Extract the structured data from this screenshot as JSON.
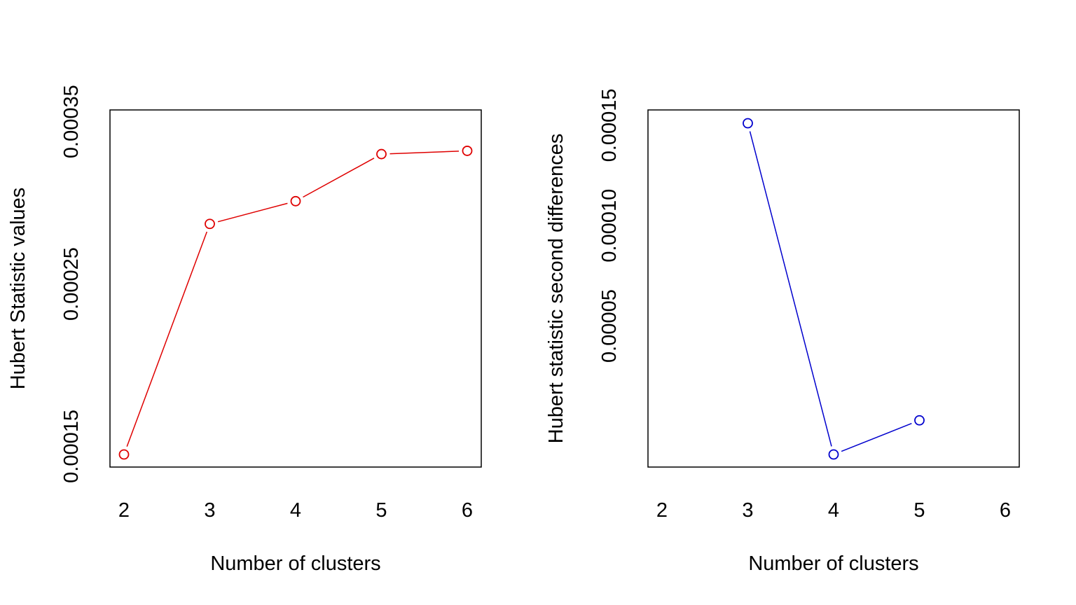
{
  "chart_data": [
    {
      "type": "line",
      "title": "",
      "xlabel": "Number of clusters",
      "ylabel": "Hubert Statistic values",
      "x": [
        2,
        3,
        4,
        5,
        6
      ],
      "x_ticks": [
        "2",
        "3",
        "4",
        "5",
        "6"
      ],
      "xlim": [
        2,
        6
      ],
      "ylim": [
        0.000145,
        0.000349
      ],
      "y_ticks": [
        0.00015,
        0.00025,
        0.00035
      ],
      "y_tick_labels": [
        "0.00015",
        "0.00025",
        "0.00035"
      ],
      "series": [
        {
          "values": [
            0.000145,
            0.000287,
            0.000301,
            0.00033,
            0.000332
          ],
          "color": "#DF0000",
          "marker": "open-circle"
        }
      ],
      "grid": false,
      "legend": "none"
    },
    {
      "type": "line",
      "title": "",
      "xlabel": "Number of clusters",
      "ylabel": "Hubert statistic second differences",
      "x": [
        3,
        4,
        5
      ],
      "x_ticks": [
        "2",
        "3",
        "4",
        "5",
        "6"
      ],
      "xlim": [
        2,
        6
      ],
      "ylim": [
        -1.4e-05,
        0.000151
      ],
      "y_ticks": [
        5e-05,
        0.0001,
        0.00015
      ],
      "y_tick_labels": [
        "0.00005",
        "0.00010",
        "0.00015"
      ],
      "series": [
        {
          "values": [
            0.000151,
            -1.4e-05,
            3e-06
          ],
          "color": "#0000CD",
          "marker": "open-circle"
        }
      ],
      "grid": false,
      "legend": "none"
    }
  ]
}
